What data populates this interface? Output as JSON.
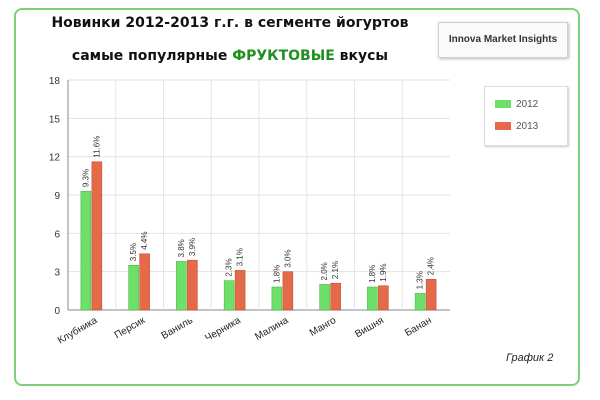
{
  "title_line1": "Новинки 2012-2013 г.г.  в сегменте йогуртов",
  "title_line2_pre": "самые популярные ",
  "title_line2_accent": "ФРУКТОВЫЕ",
  "title_line2_post": " вкусы",
  "logo_text": "Innova Market Insights",
  "footnote": "График 2",
  "colors": {
    "s2012": "#6ee06a",
    "s2013": "#e56a4a",
    "accent": "#1f8f1f",
    "frame": "#7fd07a"
  },
  "chart_data": {
    "type": "bar",
    "categories": [
      "Клубника",
      "Персик",
      "Ваниль",
      "Черника",
      "Малина",
      "Манго",
      "Вишня",
      "Банан"
    ],
    "series": [
      {
        "name": "2012",
        "values": [
          9.3,
          3.5,
          3.8,
          2.3,
          1.8,
          2.0,
          1.8,
          1.3
        ],
        "labels": [
          "9.3%",
          "3.5%",
          "3.8%",
          "2.3%",
          "1.8%",
          "2.0%",
          "1.8%",
          "1.3%"
        ]
      },
      {
        "name": "2013",
        "values": [
          11.6,
          4.4,
          3.9,
          3.1,
          3.0,
          2.1,
          1.9,
          2.4
        ],
        "labels": [
          "11.6%",
          "4.4%",
          "3.9%",
          "3.1%",
          "3.0%",
          "2.1%",
          "1.9%",
          "2.4%"
        ]
      }
    ],
    "yticks": [
      0,
      3,
      6,
      9,
      12,
      15,
      18
    ],
    "ylim": [
      0,
      18
    ],
    "grid": true,
    "legend_position": "right"
  }
}
